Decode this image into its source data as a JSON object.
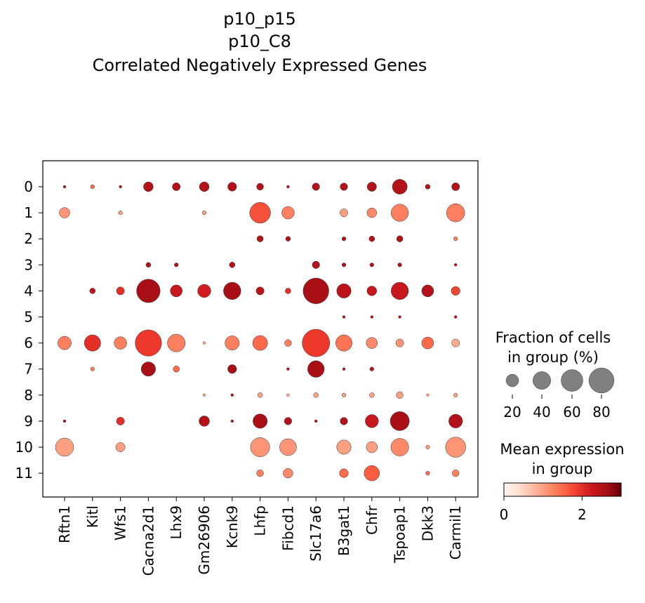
{
  "chart_data": {
    "type": "dotplot",
    "title": [
      "p10_p15",
      "p10_C8",
      "Correlated Negatively Expressed Genes"
    ],
    "genes": [
      "Rftn1",
      "Kitl",
      "Wfs1",
      "Cacna2d1",
      "Lhx9",
      "Gm26906",
      "Kcnk9",
      "Lhfp",
      "Fibcd1",
      "Slc17a6",
      "B3gat1",
      "Chfr",
      "Tspoap1",
      "Dkk3",
      "Carmil1"
    ],
    "groups": [
      "0",
      "1",
      "2",
      "3",
      "4",
      "5",
      "6",
      "7",
      "8",
      "9",
      "10",
      "11"
    ],
    "fraction_pct": [
      [
        1,
        2,
        1,
        12,
        8,
        12,
        10,
        6,
        1,
        7,
        7,
        11,
        28,
        3,
        8
      ],
      [
        14,
        0,
        2,
        0,
        0,
        2,
        0,
        55,
        20,
        0,
        8,
        12,
        38,
        0,
        42
      ],
      [
        0,
        0,
        0,
        0,
        0,
        0,
        0,
        5,
        3,
        0,
        2,
        4,
        5,
        0,
        2
      ],
      [
        0,
        0,
        0,
        3,
        2,
        0,
        4,
        0,
        0,
        7,
        2,
        2,
        2,
        0,
        1
      ],
      [
        0,
        4,
        8,
        70,
        18,
        22,
        38,
        8,
        4,
        84,
        26,
        12,
        38,
        18,
        10
      ],
      [
        0,
        0,
        0,
        0,
        0,
        0,
        0,
        0,
        0,
        0,
        1,
        1,
        1,
        0,
        1
      ],
      [
        23,
        34,
        20,
        88,
        40,
        1,
        26,
        28,
        6,
        96,
        34,
        16,
        8,
        18,
        8
      ],
      [
        0,
        2,
        0,
        26,
        5,
        0,
        10,
        0,
        1,
        35,
        1,
        2,
        0,
        0,
        0
      ],
      [
        0,
        0,
        0,
        0,
        0,
        1,
        1,
        3,
        1,
        3,
        2,
        3,
        6,
        1,
        2
      ],
      [
        1,
        0,
        8,
        0,
        0,
        14,
        1,
        26,
        7,
        1,
        7,
        22,
        46,
        0,
        24
      ],
      [
        42,
        0,
        11,
        0,
        0,
        0,
        0,
        47,
        36,
        0,
        26,
        16,
        40,
        2,
        52
      ],
      [
        0,
        0,
        0,
        0,
        0,
        0,
        0,
        6,
        12,
        0,
        10,
        30,
        0,
        2,
        6
      ]
    ],
    "mean_expression": [
      [
        2.5,
        1.5,
        2.5,
        2.5,
        2.5,
        2.5,
        2.5,
        2.5,
        2.5,
        2.5,
        2.5,
        2.5,
        2.5,
        2.5,
        2.5
      ],
      [
        1.1,
        0,
        1.0,
        1.0,
        0,
        1.0,
        0,
        1.7,
        1.3,
        0,
        1.0,
        1.2,
        1.3,
        1.0,
        1.3
      ],
      [
        2.5,
        0,
        0,
        0,
        2.5,
        0,
        2.5,
        2.5,
        2.5,
        2.5,
        2.5,
        2.5,
        2.5,
        0,
        1.3
      ],
      [
        2.5,
        2.5,
        2.5,
        2.5,
        2.5,
        2.5,
        2.5,
        2.5,
        0,
        2.5,
        2.5,
        2.5,
        2.5,
        2.5,
        2.5
      ],
      [
        2.5,
        2.4,
        2.0,
        2.6,
        2.3,
        2.2,
        2.6,
        2.4,
        2.0,
        2.6,
        2.4,
        2.3,
        2.3,
        2.5,
        1.8
      ],
      [
        2.5,
        2.5,
        2.5,
        0,
        2.5,
        0,
        0,
        0,
        2.5,
        2.5,
        2.5,
        2.5,
        2.5,
        0,
        2.5
      ],
      [
        1.3,
        2.0,
        1.3,
        1.9,
        1.3,
        1.0,
        1.3,
        1.5,
        1.3,
        1.9,
        1.4,
        1.2,
        1.1,
        1.5,
        0.9
      ],
      [
        1.3,
        1.3,
        2.5,
        2.6,
        1.5,
        0,
        2.6,
        0,
        2.5,
        2.6,
        2.5,
        2.5,
        2.5,
        2.5,
        1.3
      ],
      [
        0,
        0,
        0,
        0,
        0,
        1.0,
        2.5,
        1.0,
        1.0,
        1.0,
        1.0,
        1.0,
        1.0,
        1.0,
        1.0
      ],
      [
        2.5,
        0,
        2.0,
        0,
        0,
        2.5,
        2.5,
        2.6,
        2.5,
        2.5,
        2.5,
        2.3,
        2.6,
        0,
        2.5
      ],
      [
        1.0,
        0,
        1.0,
        0,
        0,
        0,
        0,
        1.1,
        1.1,
        0,
        1.0,
        1.0,
        1.2,
        1.0,
        1.1
      ],
      [
        0,
        0,
        0,
        0,
        0,
        0,
        0,
        1.3,
        1.2,
        0,
        1.5,
        1.6,
        0,
        1.5,
        1.3
      ]
    ],
    "size_legend": {
      "title": [
        "Fraction of cells",
        "in group (%)"
      ],
      "values": [
        20,
        40,
        60,
        80
      ],
      "labels": [
        "20",
        "40",
        "60",
        "80"
      ]
    },
    "color_legend": {
      "title": [
        "Mean expression",
        "in group"
      ],
      "colormap": "Reds",
      "range": [
        0,
        3
      ],
      "tick_values": [
        0,
        2
      ],
      "tick_labels": [
        "0",
        "2"
      ]
    },
    "colors": {
      "marker_edge": "#333333",
      "legend_marker": "#808080",
      "frame": "#000000"
    }
  }
}
